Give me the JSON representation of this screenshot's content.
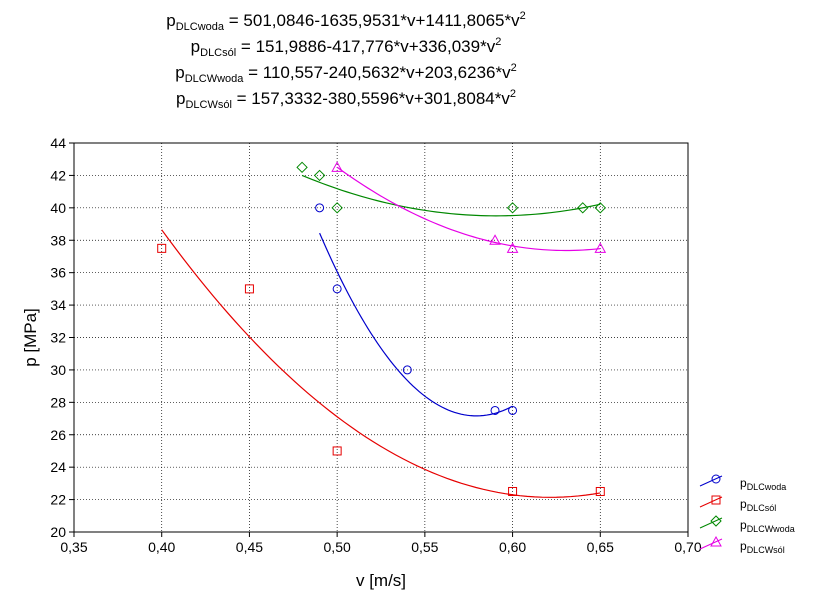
{
  "chart_data": {
    "type": "scatter",
    "equations": [
      {
        "var": "p",
        "sub": "DLCwoda",
        "rest": " = 501,0846-1635,9531*v+1411,8065*v",
        "exp": "2"
      },
      {
        "var": "p",
        "sub": "DLCsól",
        "rest": " = 151,9886-417,776*v+336,039*v",
        "exp": "2"
      },
      {
        "var": "p",
        "sub": "DLCWwoda",
        "rest": " = 110,557-240,5632*v+203,6236*v",
        "exp": "2"
      },
      {
        "var": "p",
        "sub": "DLCWsól",
        "rest": " = 157,3332-380,5596*v+301,8084*v",
        "exp": "2"
      }
    ],
    "xlabel": "v [m/s]",
    "ylabel": "p [MPa]",
    "xlim": [
      0.35,
      0.7
    ],
    "ylim": [
      20,
      44
    ],
    "xticks": [
      "0,35",
      "0,40",
      "0,45",
      "0,50",
      "0,55",
      "0,60",
      "0,65",
      "0,70"
    ],
    "yticks": [
      "20",
      "22",
      "24",
      "26",
      "28",
      "30",
      "32",
      "34",
      "36",
      "38",
      "40",
      "42",
      "44"
    ],
    "grid": true,
    "legend_position": "right-bottom",
    "series": [
      {
        "name": "p",
        "sub": "DLCwoda",
        "marker": "circle",
        "color": "#0000cc",
        "x": [
          0.49,
          0.5,
          0.54,
          0.59,
          0.6
        ],
        "y": [
          40.0,
          35.0,
          30.0,
          27.5,
          27.5
        ],
        "fit": [
          501.0846,
          -1635.9531,
          1411.8065
        ],
        "fit_range": [
          0.49,
          0.6
        ]
      },
      {
        "name": "p",
        "sub": "DLCsól",
        "marker": "square",
        "color": "#e60000",
        "x": [
          0.4,
          0.45,
          0.5,
          0.6,
          0.65
        ],
        "y": [
          37.5,
          35.0,
          25.0,
          22.5,
          22.5
        ],
        "fit": [
          151.9886,
          -417.776,
          336.039
        ],
        "fit_range": [
          0.4,
          0.65
        ]
      },
      {
        "name": "p",
        "sub": "DLCWwoda",
        "marker": "diamond",
        "color": "#008800",
        "x": [
          0.48,
          0.49,
          0.5,
          0.6,
          0.64,
          0.65
        ],
        "y": [
          42.5,
          42.0,
          40.0,
          40.0,
          40.0,
          40.0
        ],
        "fit": [
          110.557,
          -240.5632,
          203.6236
        ],
        "fit_range": [
          0.48,
          0.65
        ]
      },
      {
        "name": "p",
        "sub": "DLCWsól",
        "marker": "triangle",
        "color": "#e600e6",
        "x": [
          0.5,
          0.59,
          0.6,
          0.65
        ],
        "y": [
          42.5,
          38.0,
          37.5,
          37.5
        ],
        "fit": [
          157.3332,
          -380.5596,
          301.8084
        ],
        "fit_range": [
          0.5,
          0.65
        ]
      }
    ]
  }
}
